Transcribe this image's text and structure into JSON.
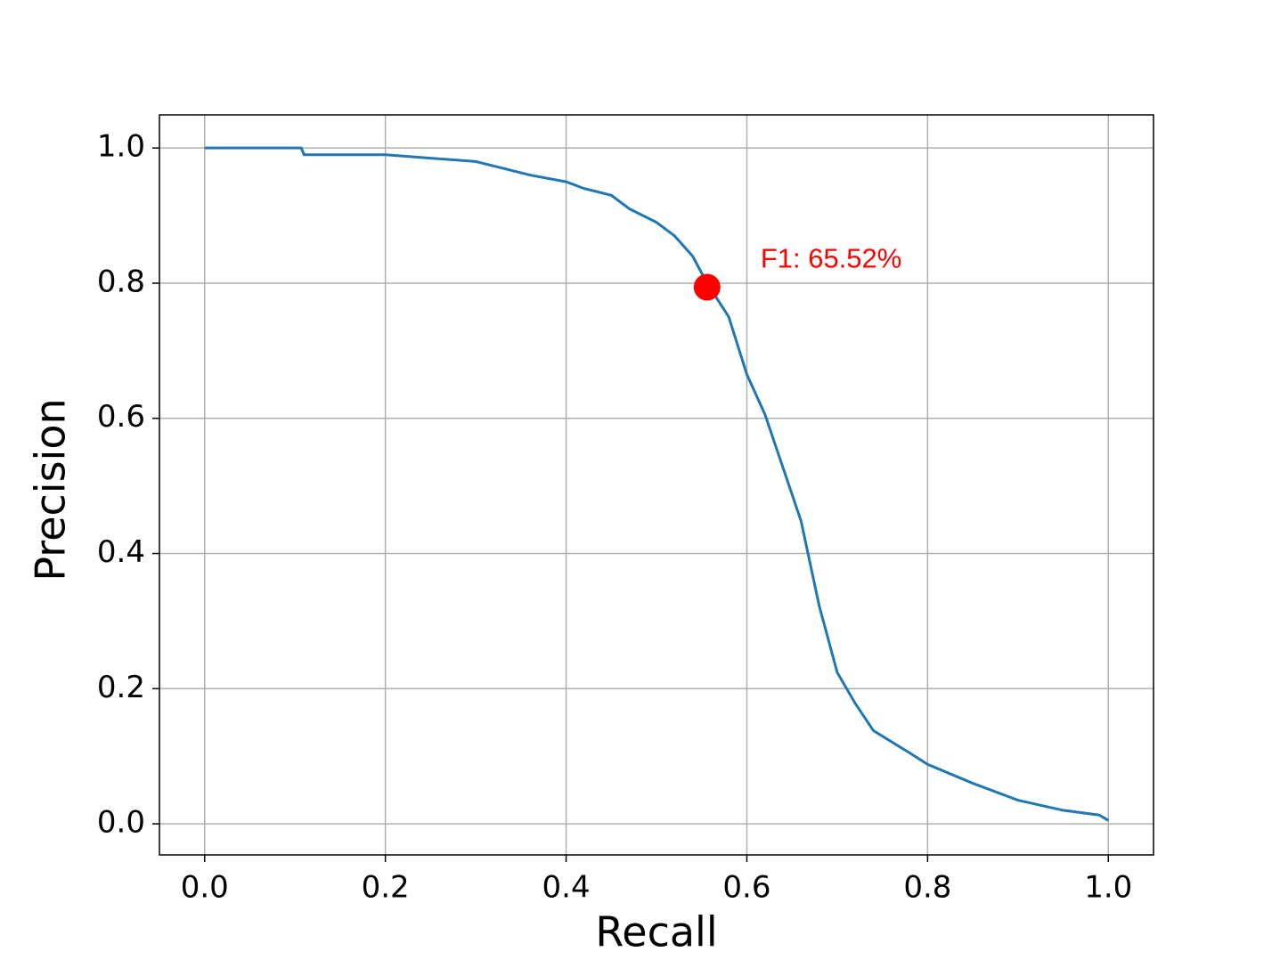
{
  "chart_data": {
    "type": "line",
    "xlabel": "Recall",
    "ylabel": "Precision",
    "x": [
      0,
      0.107,
      0.11,
      0.13,
      0.2,
      0.25,
      0.3,
      0.33,
      0.36,
      0.4,
      0.42,
      0.45,
      0.47,
      0.5,
      0.52,
      0.54,
      0.556,
      0.58,
      0.6,
      0.62,
      0.64,
      0.66,
      0.68,
      0.7,
      0.72,
      0.74,
      0.78,
      0.8,
      0.85,
      0.9,
      0.95,
      0.99,
      1.0
    ],
    "series": [
      {
        "color": "#1f77b4",
        "values": [
          1.0,
          1.0,
          0.99,
          0.99,
          0.99,
          0.985,
          0.98,
          0.97,
          0.96,
          0.95,
          0.94,
          0.93,
          0.91,
          0.89,
          0.87,
          0.84,
          0.8,
          0.75,
          0.665,
          0.606,
          0.527,
          0.448,
          0.323,
          0.224,
          0.178,
          0.138,
          0.105,
          0.088,
          0.06,
          0.035,
          0.02,
          0.013,
          0.005
        ]
      }
    ],
    "highlight": {
      "x": 0.556,
      "y": 0.794,
      "color": "#ff0000",
      "label": "F1: 65.52%"
    },
    "xlim": [
      -0.05,
      1.05
    ],
    "ylim": [
      -0.046,
      1.049
    ],
    "xticks": [
      {
        "value": 0,
        "label": "0.0"
      },
      0.2,
      0.4,
      0.6,
      0.8,
      {
        "value": 1,
        "label": "1.0"
      }
    ],
    "yticks": [
      {
        "value": 0,
        "label": "0.0"
      },
      0.2,
      0.4,
      0.6,
      0.8,
      {
        "value": 1,
        "label": "1.0"
      }
    ],
    "grid": true
  }
}
